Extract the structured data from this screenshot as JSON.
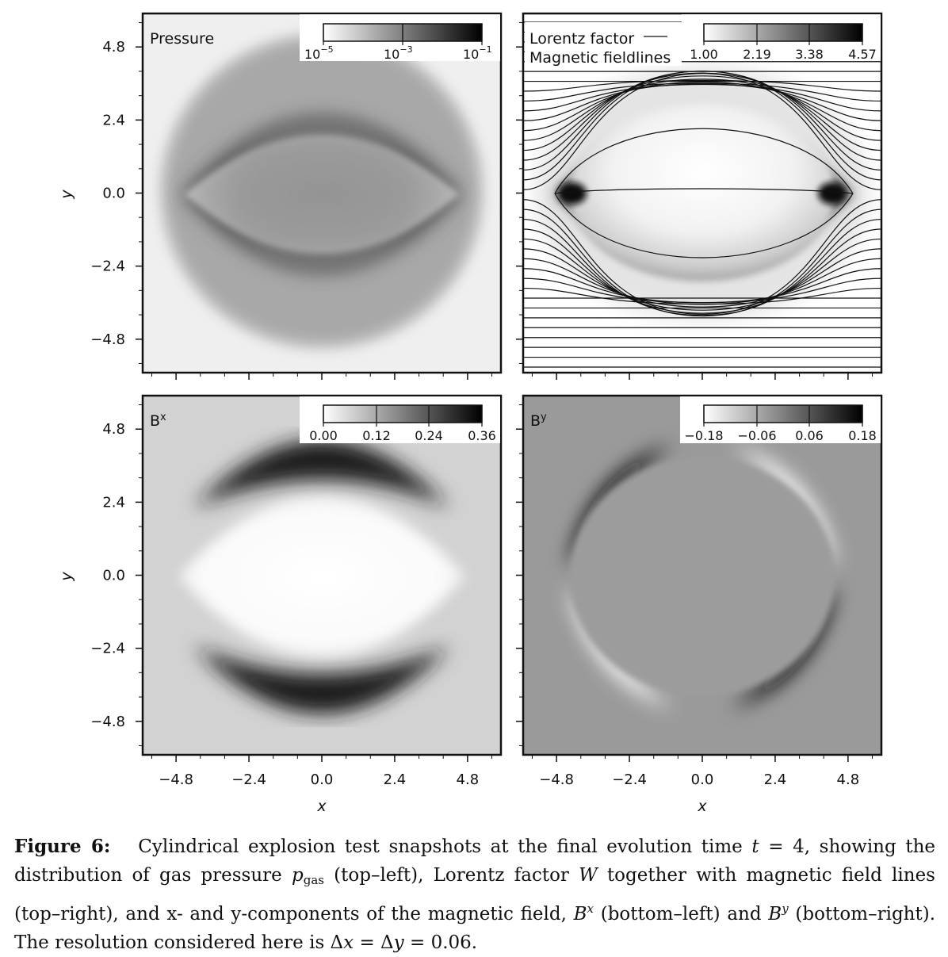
{
  "figure": {
    "panels": [
      {
        "id": "pressure",
        "label": "Pressure",
        "label_sup": "",
        "colorbar_ticks": [
          "10",
          "10",
          "10"
        ],
        "colorbar_tick_exps": [
          "−5",
          "−3",
          "−1"
        ],
        "colorbar_scale": "log",
        "background_color": "#efefef"
      },
      {
        "id": "lorentz",
        "label": "Lorentz factor",
        "label2": "Magnetic fieldlines",
        "colorbar_ticks": [
          "1.00",
          "2.19",
          "3.38",
          "4.57"
        ],
        "colorbar_scale": "linear",
        "background_color": "#ffffff"
      },
      {
        "id": "bx",
        "label": "B",
        "label_sup": "x",
        "colorbar_ticks": [
          "0.00",
          "0.12",
          "0.24",
          "0.36"
        ],
        "colorbar_scale": "linear",
        "background_color": "#d2d2d2"
      },
      {
        "id": "by",
        "label": "B",
        "label_sup": "y",
        "colorbar_ticks": [
          "−0.18",
          "−0.06",
          "0.06",
          "0.18"
        ],
        "colorbar_scale": "linear",
        "background_color": "#9a9a9a"
      }
    ],
    "axes": {
      "ticks": [
        -4.8,
        -2.4,
        0.0,
        2.4,
        4.8
      ],
      "tick_labels": [
        "−4.8",
        "−2.4",
        "0.0",
        "2.4",
        "4.8"
      ],
      "y_tick_labels": [
        "4.8",
        "2.4",
        "0.0",
        "−2.4",
        "−4.8"
      ],
      "range": [
        -5.9,
        5.9
      ],
      "xlabel": "x",
      "ylabel": "y"
    }
  },
  "caption": {
    "label": "Figure 6:",
    "text_1": "Cylindrical explosion test snapshots at the final evolution time",
    "t_symbol": "t",
    "text_2": "= 4, showing the distribution of gas pressure",
    "p_symbol": "p",
    "p_sub": "gas",
    "text_3": "(top–left), Lorentz factor",
    "w_symbol": "W",
    "text_4": "together with magnetic field lines (top–right), and x- and y-components of the magnetic field,",
    "bx_symbol": "B",
    "bx_sup": "x",
    "text_5": "(bottom–left) and",
    "by_symbol": "B",
    "by_sup": "y",
    "text_6": "(bottom–right). The resolution considered here is Δ",
    "dx_symbol": "x",
    "text_7": "= Δ",
    "dy_symbol": "y",
    "text_8": "= 0.06."
  }
}
